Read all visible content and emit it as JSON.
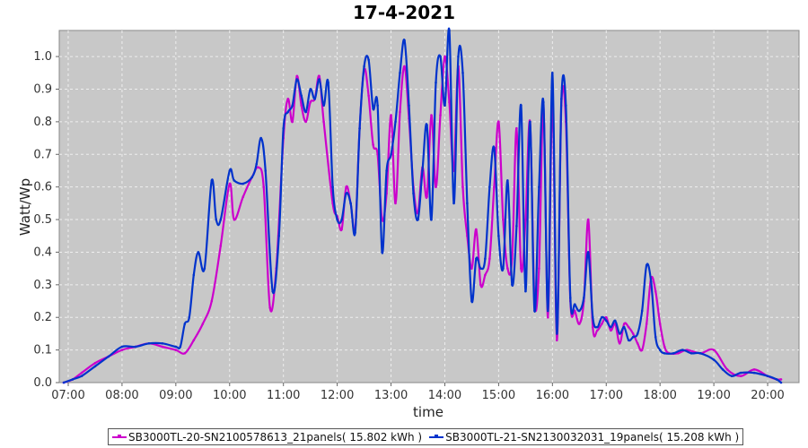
{
  "chart_data": {
    "type": "line",
    "title": "17-4-2021",
    "xlabel": "time",
    "ylabel": "Watt/Wp",
    "xlim": [
      "06:50",
      "20:35"
    ],
    "ylim": [
      0,
      1.08
    ],
    "x_ticks": [
      "07:00",
      "08:00",
      "09:00",
      "10:00",
      "11:00",
      "12:00",
      "13:00",
      "14:00",
      "15:00",
      "16:00",
      "17:00",
      "18:00",
      "19:00",
      "20:00"
    ],
    "y_ticks": [
      "0.0",
      "0.1",
      "0.2",
      "0.3",
      "0.4",
      "0.5",
      "0.6",
      "0.7",
      "0.8",
      "0.9",
      "1.0"
    ],
    "grid": true,
    "legend_position": "bottom",
    "series": [
      {
        "name": "SB3000TL-20-SN2100578613_21panels( 15.802 kWh )",
        "color": "#cc00cc",
        "points": [
          [
            "06:55",
            0.0
          ],
          [
            "07:05",
            0.01
          ],
          [
            "07:15",
            0.03
          ],
          [
            "07:30",
            0.06
          ],
          [
            "07:45",
            0.08
          ],
          [
            "08:00",
            0.1
          ],
          [
            "08:15",
            0.11
          ],
          [
            "08:30",
            0.12
          ],
          [
            "08:45",
            0.11
          ],
          [
            "09:00",
            0.1
          ],
          [
            "09:10",
            0.09
          ],
          [
            "09:20",
            0.13
          ],
          [
            "09:30",
            0.18
          ],
          [
            "09:40",
            0.25
          ],
          [
            "09:50",
            0.42
          ],
          [
            "10:00",
            0.61
          ],
          [
            "10:05",
            0.5
          ],
          [
            "10:15",
            0.57
          ],
          [
            "10:25",
            0.63
          ],
          [
            "10:32",
            0.66
          ],
          [
            "10:38",
            0.6
          ],
          [
            "10:45",
            0.23
          ],
          [
            "10:52",
            0.35
          ],
          [
            "11:00",
            0.75
          ],
          [
            "11:05",
            0.87
          ],
          [
            "11:10",
            0.8
          ],
          [
            "11:15",
            0.94
          ],
          [
            "11:20",
            0.85
          ],
          [
            "11:25",
            0.8
          ],
          [
            "11:30",
            0.86
          ],
          [
            "11:35",
            0.87
          ],
          [
            "11:40",
            0.94
          ],
          [
            "11:45",
            0.8
          ],
          [
            "11:55",
            0.55
          ],
          [
            "12:00",
            0.51
          ],
          [
            "12:05",
            0.47
          ],
          [
            "12:10",
            0.6
          ],
          [
            "12:15",
            0.55
          ],
          [
            "12:20",
            0.47
          ],
          [
            "12:25",
            0.78
          ],
          [
            "12:30",
            0.96
          ],
          [
            "12:35",
            0.88
          ],
          [
            "12:40",
            0.73
          ],
          [
            "12:45",
            0.7
          ],
          [
            "12:50",
            0.5
          ],
          [
            "12:55",
            0.58
          ],
          [
            "13:00",
            0.82
          ],
          [
            "13:05",
            0.55
          ],
          [
            "13:10",
            0.83
          ],
          [
            "13:15",
            0.97
          ],
          [
            "13:20",
            0.81
          ],
          [
            "13:25",
            0.6
          ],
          [
            "13:30",
            0.52
          ],
          [
            "13:35",
            0.66
          ],
          [
            "13:40",
            0.57
          ],
          [
            "13:45",
            0.82
          ],
          [
            "13:50",
            0.6
          ],
          [
            "13:55",
            0.82
          ],
          [
            "14:00",
            1.0
          ],
          [
            "14:05",
            0.86
          ],
          [
            "14:10",
            0.65
          ],
          [
            "14:15",
            0.97
          ],
          [
            "14:20",
            0.6
          ],
          [
            "14:25",
            0.45
          ],
          [
            "14:30",
            0.35
          ],
          [
            "14:35",
            0.47
          ],
          [
            "14:40",
            0.3
          ],
          [
            "14:45",
            0.33
          ],
          [
            "14:50",
            0.38
          ],
          [
            "14:55",
            0.6
          ],
          [
            "15:00",
            0.8
          ],
          [
            "15:05",
            0.5
          ],
          [
            "15:10",
            0.35
          ],
          [
            "15:15",
            0.38
          ],
          [
            "15:20",
            0.78
          ],
          [
            "15:25",
            0.35
          ],
          [
            "15:30",
            0.5
          ],
          [
            "15:35",
            0.8
          ],
          [
            "15:40",
            0.25
          ],
          [
            "15:45",
            0.35
          ],
          [
            "15:50",
            0.85
          ],
          [
            "15:55",
            0.2
          ],
          [
            "16:00",
            0.87
          ],
          [
            "16:05",
            0.13
          ],
          [
            "16:10",
            0.85
          ],
          [
            "16:15",
            0.8
          ],
          [
            "16:20",
            0.25
          ],
          [
            "16:25",
            0.22
          ],
          [
            "16:30",
            0.18
          ],
          [
            "16:35",
            0.25
          ],
          [
            "16:40",
            0.5
          ],
          [
            "16:45",
            0.17
          ],
          [
            "16:50",
            0.16
          ],
          [
            "16:55",
            0.18
          ],
          [
            "17:00",
            0.2
          ],
          [
            "17:05",
            0.16
          ],
          [
            "17:10",
            0.18
          ],
          [
            "17:15",
            0.12
          ],
          [
            "17:20",
            0.18
          ],
          [
            "17:25",
            0.17
          ],
          [
            "17:30",
            0.15
          ],
          [
            "17:35",
            0.12
          ],
          [
            "17:40",
            0.1
          ],
          [
            "17:45",
            0.18
          ],
          [
            "17:50",
            0.32
          ],
          [
            "17:55",
            0.28
          ],
          [
            "18:00",
            0.18
          ],
          [
            "18:05",
            0.11
          ],
          [
            "18:10",
            0.09
          ],
          [
            "18:20",
            0.09
          ],
          [
            "18:30",
            0.1
          ],
          [
            "18:45",
            0.09
          ],
          [
            "19:00",
            0.1
          ],
          [
            "19:15",
            0.04
          ],
          [
            "19:30",
            0.02
          ],
          [
            "19:45",
            0.04
          ],
          [
            "20:00",
            0.02
          ],
          [
            "20:10",
            0.01
          ],
          [
            "20:15",
            0.01
          ]
        ]
      },
      {
        "name": "SB3000TL-21-SN2130032031_19panels( 15.208 kWh )",
        "color": "#0033cc",
        "points": [
          [
            "06:55",
            0.0
          ],
          [
            "07:05",
            0.01
          ],
          [
            "07:15",
            0.02
          ],
          [
            "07:30",
            0.05
          ],
          [
            "07:45",
            0.08
          ],
          [
            "08:00",
            0.11
          ],
          [
            "08:15",
            0.11
          ],
          [
            "08:30",
            0.12
          ],
          [
            "08:45",
            0.12
          ],
          [
            "09:00",
            0.11
          ],
          [
            "09:05",
            0.11
          ],
          [
            "09:10",
            0.18
          ],
          [
            "09:15",
            0.2
          ],
          [
            "09:20",
            0.33
          ],
          [
            "09:25",
            0.4
          ],
          [
            "09:32",
            0.35
          ],
          [
            "09:40",
            0.62
          ],
          [
            "09:45",
            0.5
          ],
          [
            "09:50",
            0.5
          ],
          [
            "10:00",
            0.65
          ],
          [
            "10:05",
            0.62
          ],
          [
            "10:15",
            0.61
          ],
          [
            "10:25",
            0.63
          ],
          [
            "10:30",
            0.67
          ],
          [
            "10:35",
            0.75
          ],
          [
            "10:40",
            0.65
          ],
          [
            "10:48",
            0.28
          ],
          [
            "10:55",
            0.45
          ],
          [
            "11:00",
            0.78
          ],
          [
            "11:05",
            0.83
          ],
          [
            "11:10",
            0.85
          ],
          [
            "11:15",
            0.93
          ],
          [
            "11:20",
            0.88
          ],
          [
            "11:25",
            0.83
          ],
          [
            "11:30",
            0.9
          ],
          [
            "11:35",
            0.87
          ],
          [
            "11:40",
            0.93
          ],
          [
            "11:45",
            0.85
          ],
          [
            "11:50",
            0.92
          ],
          [
            "11:55",
            0.6
          ],
          [
            "12:00",
            0.5
          ],
          [
            "12:05",
            0.5
          ],
          [
            "12:10",
            0.58
          ],
          [
            "12:15",
            0.55
          ],
          [
            "12:20",
            0.46
          ],
          [
            "12:25",
            0.78
          ],
          [
            "12:30",
            0.97
          ],
          [
            "12:35",
            0.99
          ],
          [
            "12:40",
            0.84
          ],
          [
            "12:45",
            0.85
          ],
          [
            "12:50",
            0.4
          ],
          [
            "12:55",
            0.65
          ],
          [
            "13:00",
            0.7
          ],
          [
            "13:05",
            0.8
          ],
          [
            "13:10",
            0.95
          ],
          [
            "13:15",
            1.05
          ],
          [
            "13:20",
            0.85
          ],
          [
            "13:25",
            0.58
          ],
          [
            "13:30",
            0.5
          ],
          [
            "13:35",
            0.65
          ],
          [
            "13:40",
            0.79
          ],
          [
            "13:45",
            0.5
          ],
          [
            "13:50",
            0.92
          ],
          [
            "13:55",
            1.0
          ],
          [
            "14:00",
            0.85
          ],
          [
            "14:05",
            1.08
          ],
          [
            "14:10",
            0.55
          ],
          [
            "14:15",
            1.0
          ],
          [
            "14:20",
            0.95
          ],
          [
            "14:25",
            0.55
          ],
          [
            "14:30",
            0.25
          ],
          [
            "14:35",
            0.38
          ],
          [
            "14:40",
            0.35
          ],
          [
            "14:45",
            0.38
          ],
          [
            "14:50",
            0.6
          ],
          [
            "14:55",
            0.72
          ],
          [
            "15:00",
            0.45
          ],
          [
            "15:05",
            0.35
          ],
          [
            "15:10",
            0.62
          ],
          [
            "15:15",
            0.3
          ],
          [
            "15:20",
            0.48
          ],
          [
            "15:25",
            0.85
          ],
          [
            "15:30",
            0.28
          ],
          [
            "15:35",
            0.8
          ],
          [
            "15:40",
            0.22
          ],
          [
            "15:45",
            0.6
          ],
          [
            "15:50",
            0.86
          ],
          [
            "15:55",
            0.22
          ],
          [
            "16:00",
            0.95
          ],
          [
            "16:05",
            0.15
          ],
          [
            "16:10",
            0.87
          ],
          [
            "16:15",
            0.85
          ],
          [
            "16:20",
            0.26
          ],
          [
            "16:25",
            0.24
          ],
          [
            "16:30",
            0.22
          ],
          [
            "16:35",
            0.26
          ],
          [
            "16:40",
            0.4
          ],
          [
            "16:45",
            0.2
          ],
          [
            "16:50",
            0.17
          ],
          [
            "16:55",
            0.2
          ],
          [
            "17:00",
            0.19
          ],
          [
            "17:05",
            0.17
          ],
          [
            "17:10",
            0.19
          ],
          [
            "17:15",
            0.15
          ],
          [
            "17:20",
            0.17
          ],
          [
            "17:25",
            0.13
          ],
          [
            "17:30",
            0.14
          ],
          [
            "17:35",
            0.15
          ],
          [
            "17:40",
            0.22
          ],
          [
            "17:45",
            0.36
          ],
          [
            "17:50",
            0.31
          ],
          [
            "17:55",
            0.14
          ],
          [
            "18:00",
            0.1
          ],
          [
            "18:05",
            0.09
          ],
          [
            "18:15",
            0.09
          ],
          [
            "18:25",
            0.1
          ],
          [
            "18:35",
            0.09
          ],
          [
            "18:45",
            0.09
          ],
          [
            "19:00",
            0.07
          ],
          [
            "19:10",
            0.04
          ],
          [
            "19:20",
            0.02
          ],
          [
            "19:30",
            0.03
          ],
          [
            "19:45",
            0.03
          ],
          [
            "20:00",
            0.02
          ],
          [
            "20:10",
            0.01
          ],
          [
            "20:15",
            0.0
          ]
        ]
      }
    ]
  }
}
